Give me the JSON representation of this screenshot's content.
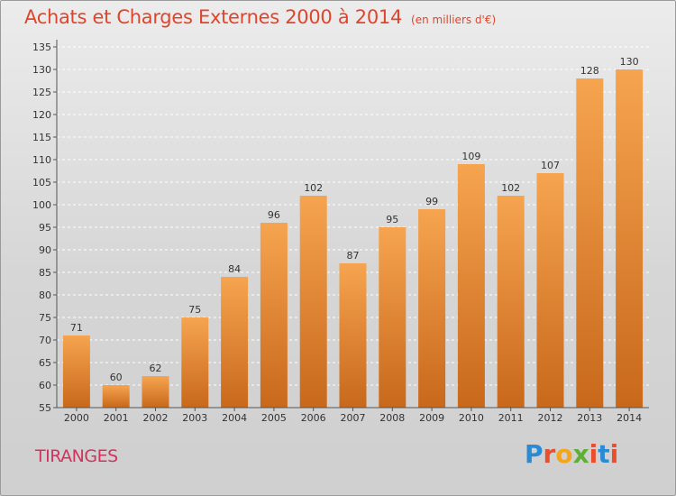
{
  "header": {
    "title": "Achats et Charges Externes 2000 à 2014",
    "unit": "(en milliers d'€)"
  },
  "footer": {
    "commune": "TIRANGES",
    "logo": {
      "text": "Proxiti",
      "colors": [
        "#2a8ad4",
        "#e94f2d",
        "#f3a51c",
        "#5db035",
        "#e94f2d",
        "#2a8ad4",
        "#e94f2d"
      ]
    }
  },
  "colors": {
    "title": "#e0452c",
    "commune": "#d0345c",
    "bar_top": "#f6a44f",
    "bar_bottom": "#c8681b"
  },
  "chart_data": {
    "type": "bar",
    "title": "Achats et Charges Externes 2000 à 2014",
    "subtitle": "(en milliers d'€)",
    "categories": [
      "2000",
      "2001",
      "2002",
      "2003",
      "2004",
      "2005",
      "2006",
      "2007",
      "2008",
      "2009",
      "2010",
      "2011",
      "2012",
      "2013",
      "2014"
    ],
    "values": [
      71,
      60,
      62,
      75,
      84,
      96,
      102,
      87,
      95,
      99,
      109,
      102,
      107,
      128,
      130
    ],
    "ylim": [
      55,
      135
    ],
    "yticks": [
      55,
      60,
      65,
      70,
      75,
      80,
      85,
      90,
      95,
      100,
      105,
      110,
      115,
      120,
      125,
      130,
      135
    ],
    "grid": true,
    "data_labels": true
  }
}
